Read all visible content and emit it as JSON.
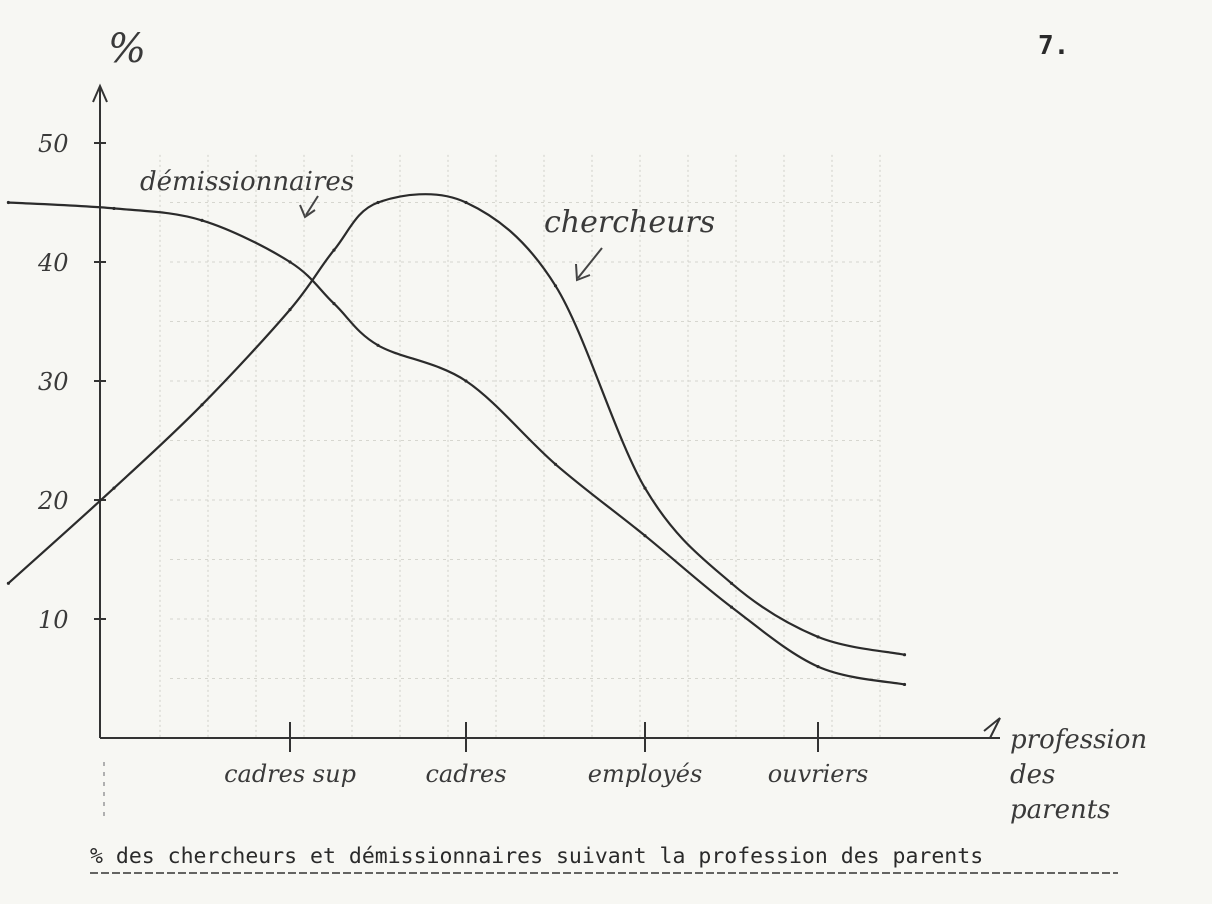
{
  "page_number": "7.",
  "caption": "% des chercheurs et démissionnaires suivant la profession des parents",
  "chart_data": {
    "type": "line",
    "ylabel": "%",
    "xlabel_lines": [
      "profession",
      "des",
      "parents"
    ],
    "categories": [
      "cadres sup",
      "cadres",
      "employés",
      "ouvriers"
    ],
    "y_ticks": [
      "10",
      "20",
      "30",
      "40",
      "50"
    ],
    "ylim": [
      0,
      55
    ],
    "grid": true,
    "x": [
      -1.6,
      -1.0,
      -0.5,
      0.0,
      0.25,
      0.5,
      1.0,
      1.5,
      2.0,
      2.5,
      3.0,
      3.5
    ],
    "series": [
      {
        "name": "démissionnaires",
        "values": [
          45,
          44.5,
          43.5,
          40,
          36.5,
          33,
          30,
          23,
          17,
          11,
          6,
          4.5
        ]
      },
      {
        "name": "chercheurs",
        "values": [
          13,
          21,
          28,
          36,
          41,
          45,
          45,
          38,
          21,
          13,
          8.5,
          7
        ]
      }
    ]
  }
}
